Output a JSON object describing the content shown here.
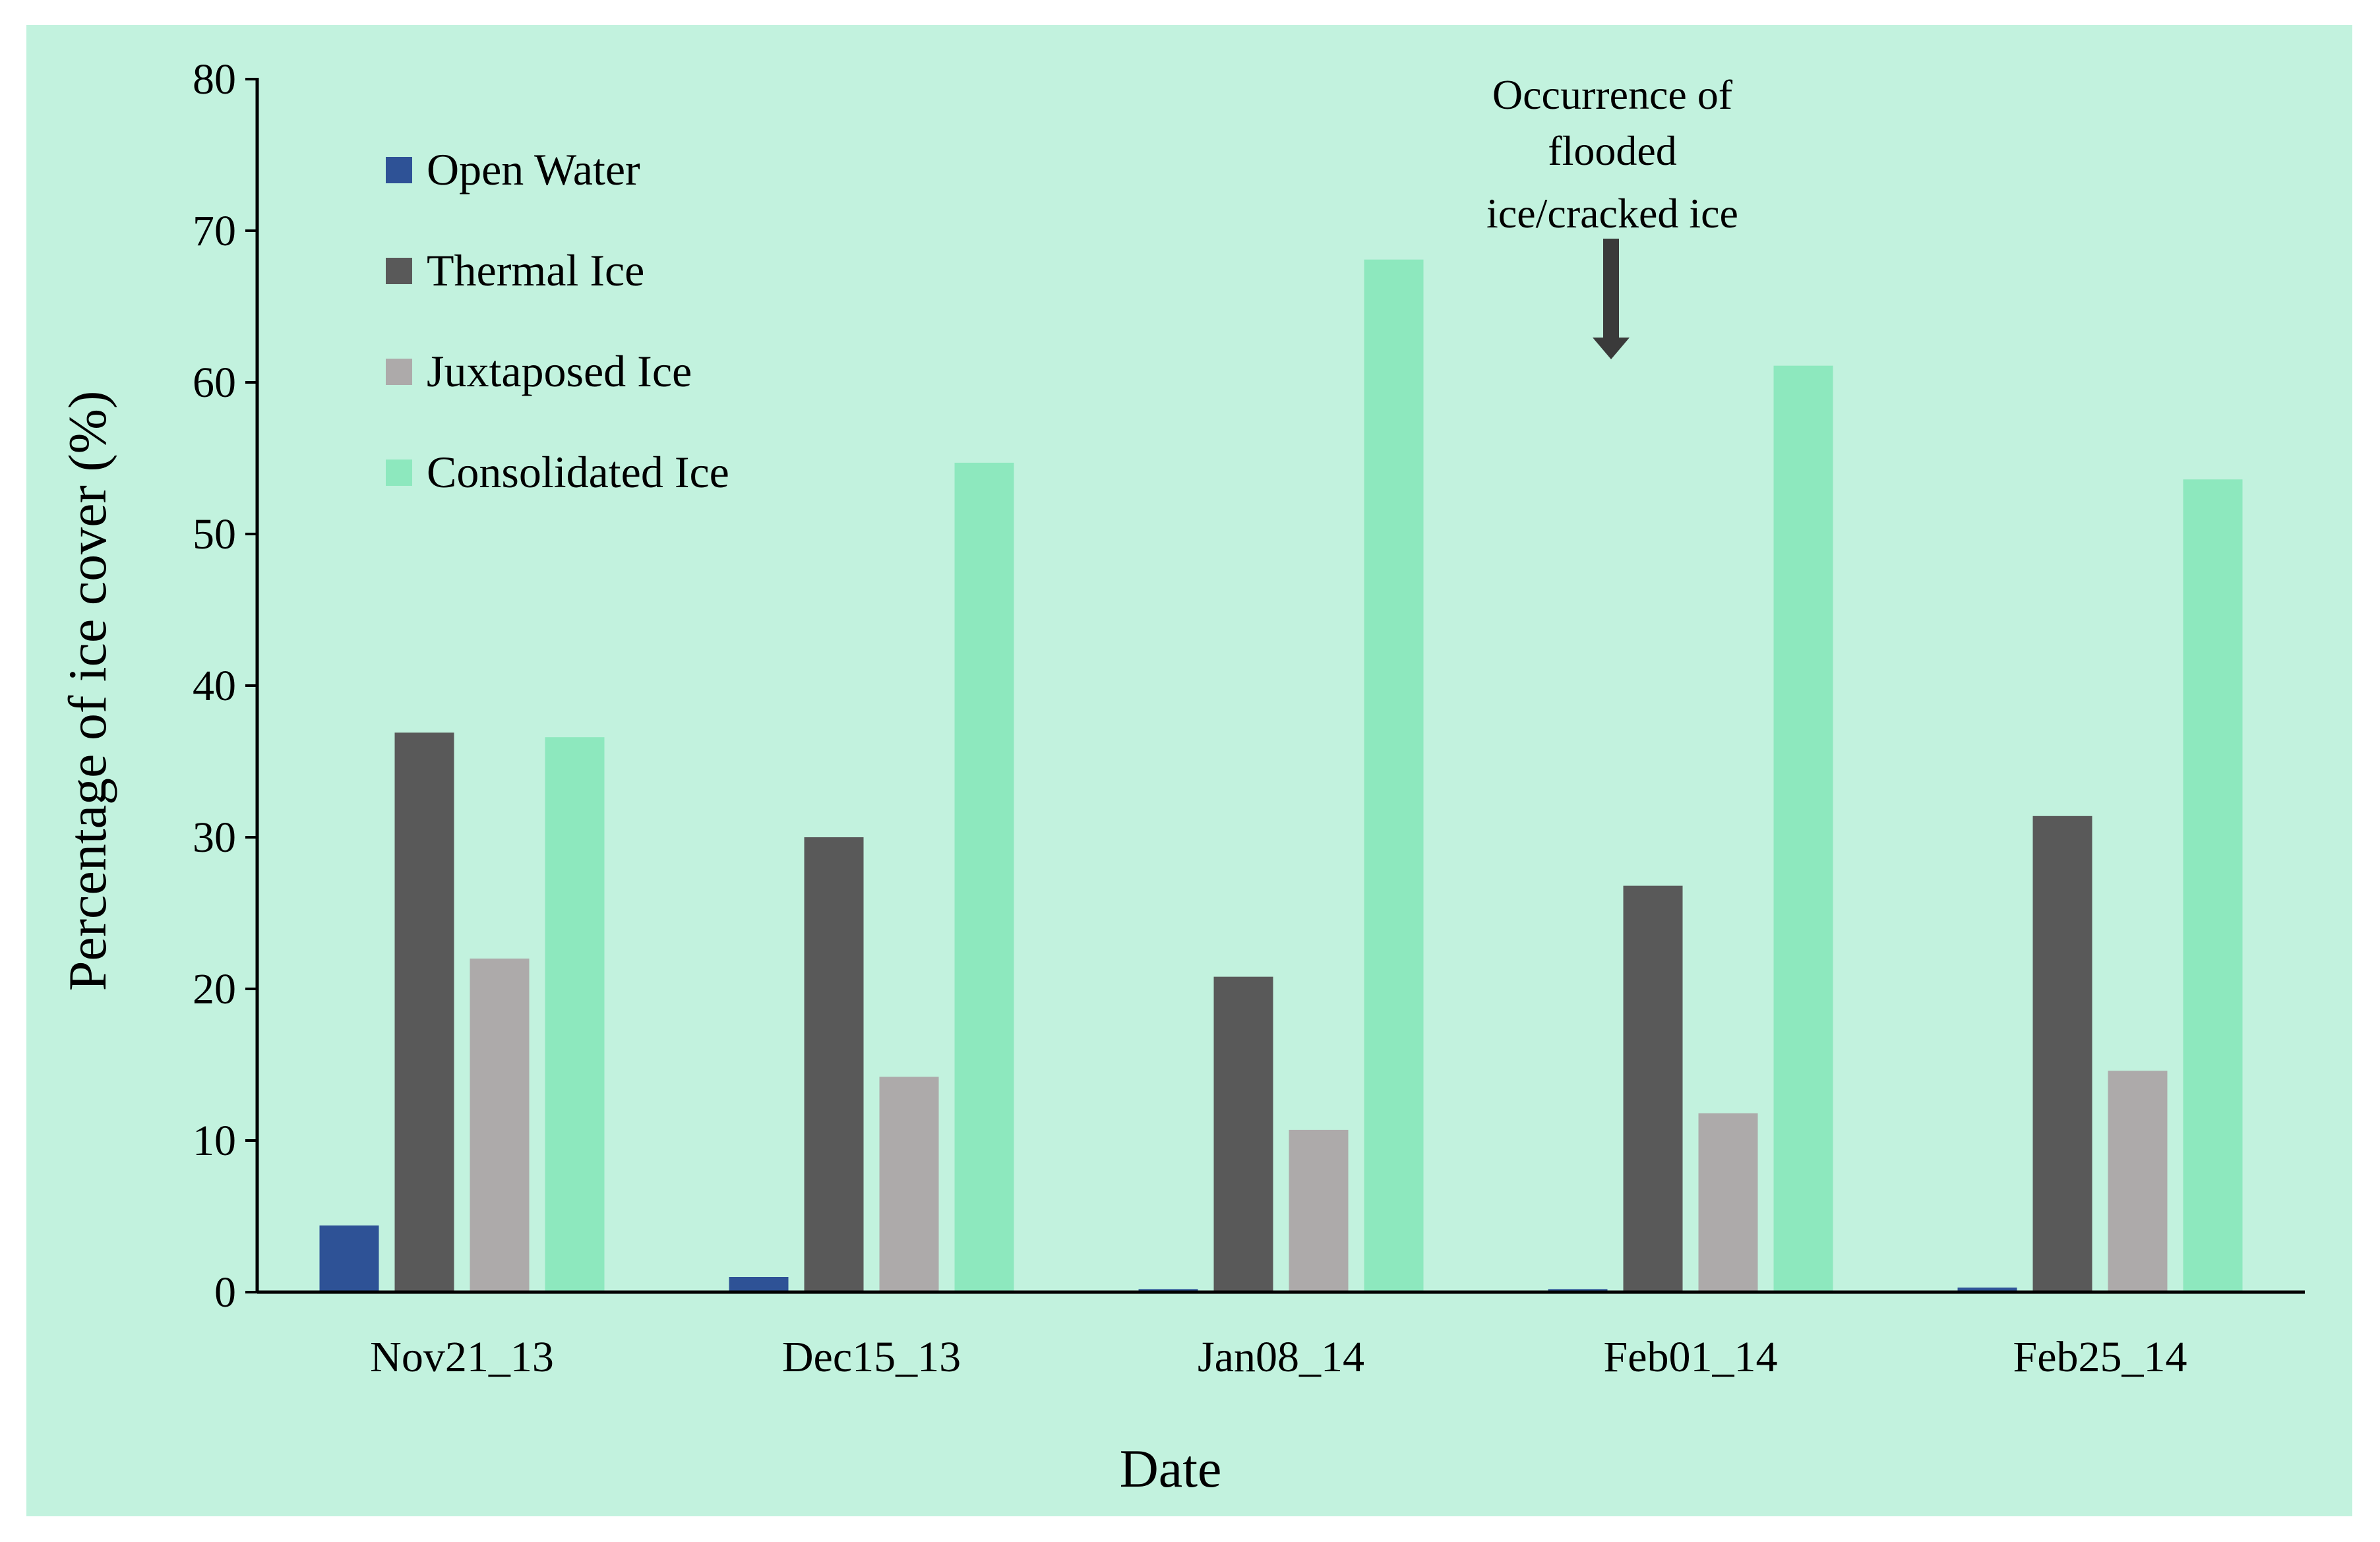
{
  "colors": {
    "background": "#c2f2de",
    "axis": "#000000",
    "arrow": "#3a3a3a"
  },
  "annotation": {
    "lines": [
      "Occurrence of",
      "flooded",
      "ice/cracked ice"
    ],
    "category": "Feb01_14"
  },
  "chart_data": {
    "type": "bar",
    "xlabel": "Date",
    "ylabel": "Percentage of ice cover (%)",
    "ylim": [
      0,
      80
    ],
    "yticks": [
      "0",
      "10",
      "20",
      "30",
      "40",
      "50",
      "60",
      "70",
      "80"
    ],
    "grid": false,
    "legend_position": "top-left",
    "categories": [
      "Nov21_13",
      "Dec15_13",
      "Jan08_14",
      "Feb01_14",
      "Feb25_14"
    ],
    "series": [
      {
        "name": "Open Water",
        "color": "#2e5296",
        "values": [
          4.4,
          1.0,
          0.2,
          0.2,
          0.3
        ]
      },
      {
        "name": "Thermal Ice",
        "color": "#595959",
        "values": [
          36.9,
          30.0,
          20.8,
          26.8,
          31.4
        ]
      },
      {
        "name": "Juxtaposed Ice",
        "color": "#adaaaa",
        "values": [
          22.0,
          14.2,
          10.7,
          11.8,
          14.6
        ]
      },
      {
        "name": "Consolidated Ice",
        "color": "#8de8be",
        "values": [
          36.6,
          54.7,
          68.1,
          61.1,
          53.6
        ]
      }
    ]
  }
}
